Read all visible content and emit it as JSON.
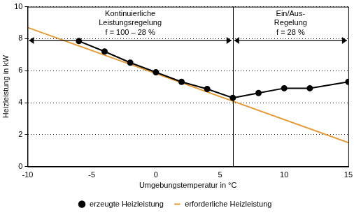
{
  "chart_data": {
    "type": "line",
    "x_label": "Umgebungstemperatur in °C",
    "y_label": "Heizleistung in kW",
    "xlim": [
      -10,
      15
    ],
    "xticks": [
      -10,
      -5,
      0,
      5,
      10,
      15
    ],
    "ylim": [
      0,
      10
    ],
    "yticks": [
      0,
      2,
      4,
      6,
      8,
      10
    ],
    "grid": "y",
    "legend": "bottom",
    "series": [
      {
        "name": "erzeugte Heizleistung",
        "color": "#000000",
        "marker": "circle",
        "line_style": "solid",
        "x": [
          -6,
          -4,
          -2,
          0,
          2,
          4,
          6,
          8,
          10,
          12,
          15
        ],
        "values": [
          7.85,
          7.2,
          6.5,
          5.9,
          5.3,
          4.85,
          4.3,
          4.6,
          4.9,
          4.9,
          5.3
        ]
      },
      {
        "name": "erforderliche Heizleistung",
        "color": "#e39b3a",
        "marker": "none",
        "line_style": "solid",
        "x": [
          -10,
          15
        ],
        "values": [
          8.7,
          1.5
        ]
      }
    ],
    "regions": [
      {
        "label": [
          "Kontinuierliche",
          "Leistungsregelung"
        ],
        "factor": "f = 100 – 28 %",
        "from": -10,
        "to": 6
      },
      {
        "label": [
          "Ein/Aus-",
          "Regelung"
        ],
        "factor": "f = 28 %",
        "from": 6,
        "to": 15
      }
    ]
  }
}
